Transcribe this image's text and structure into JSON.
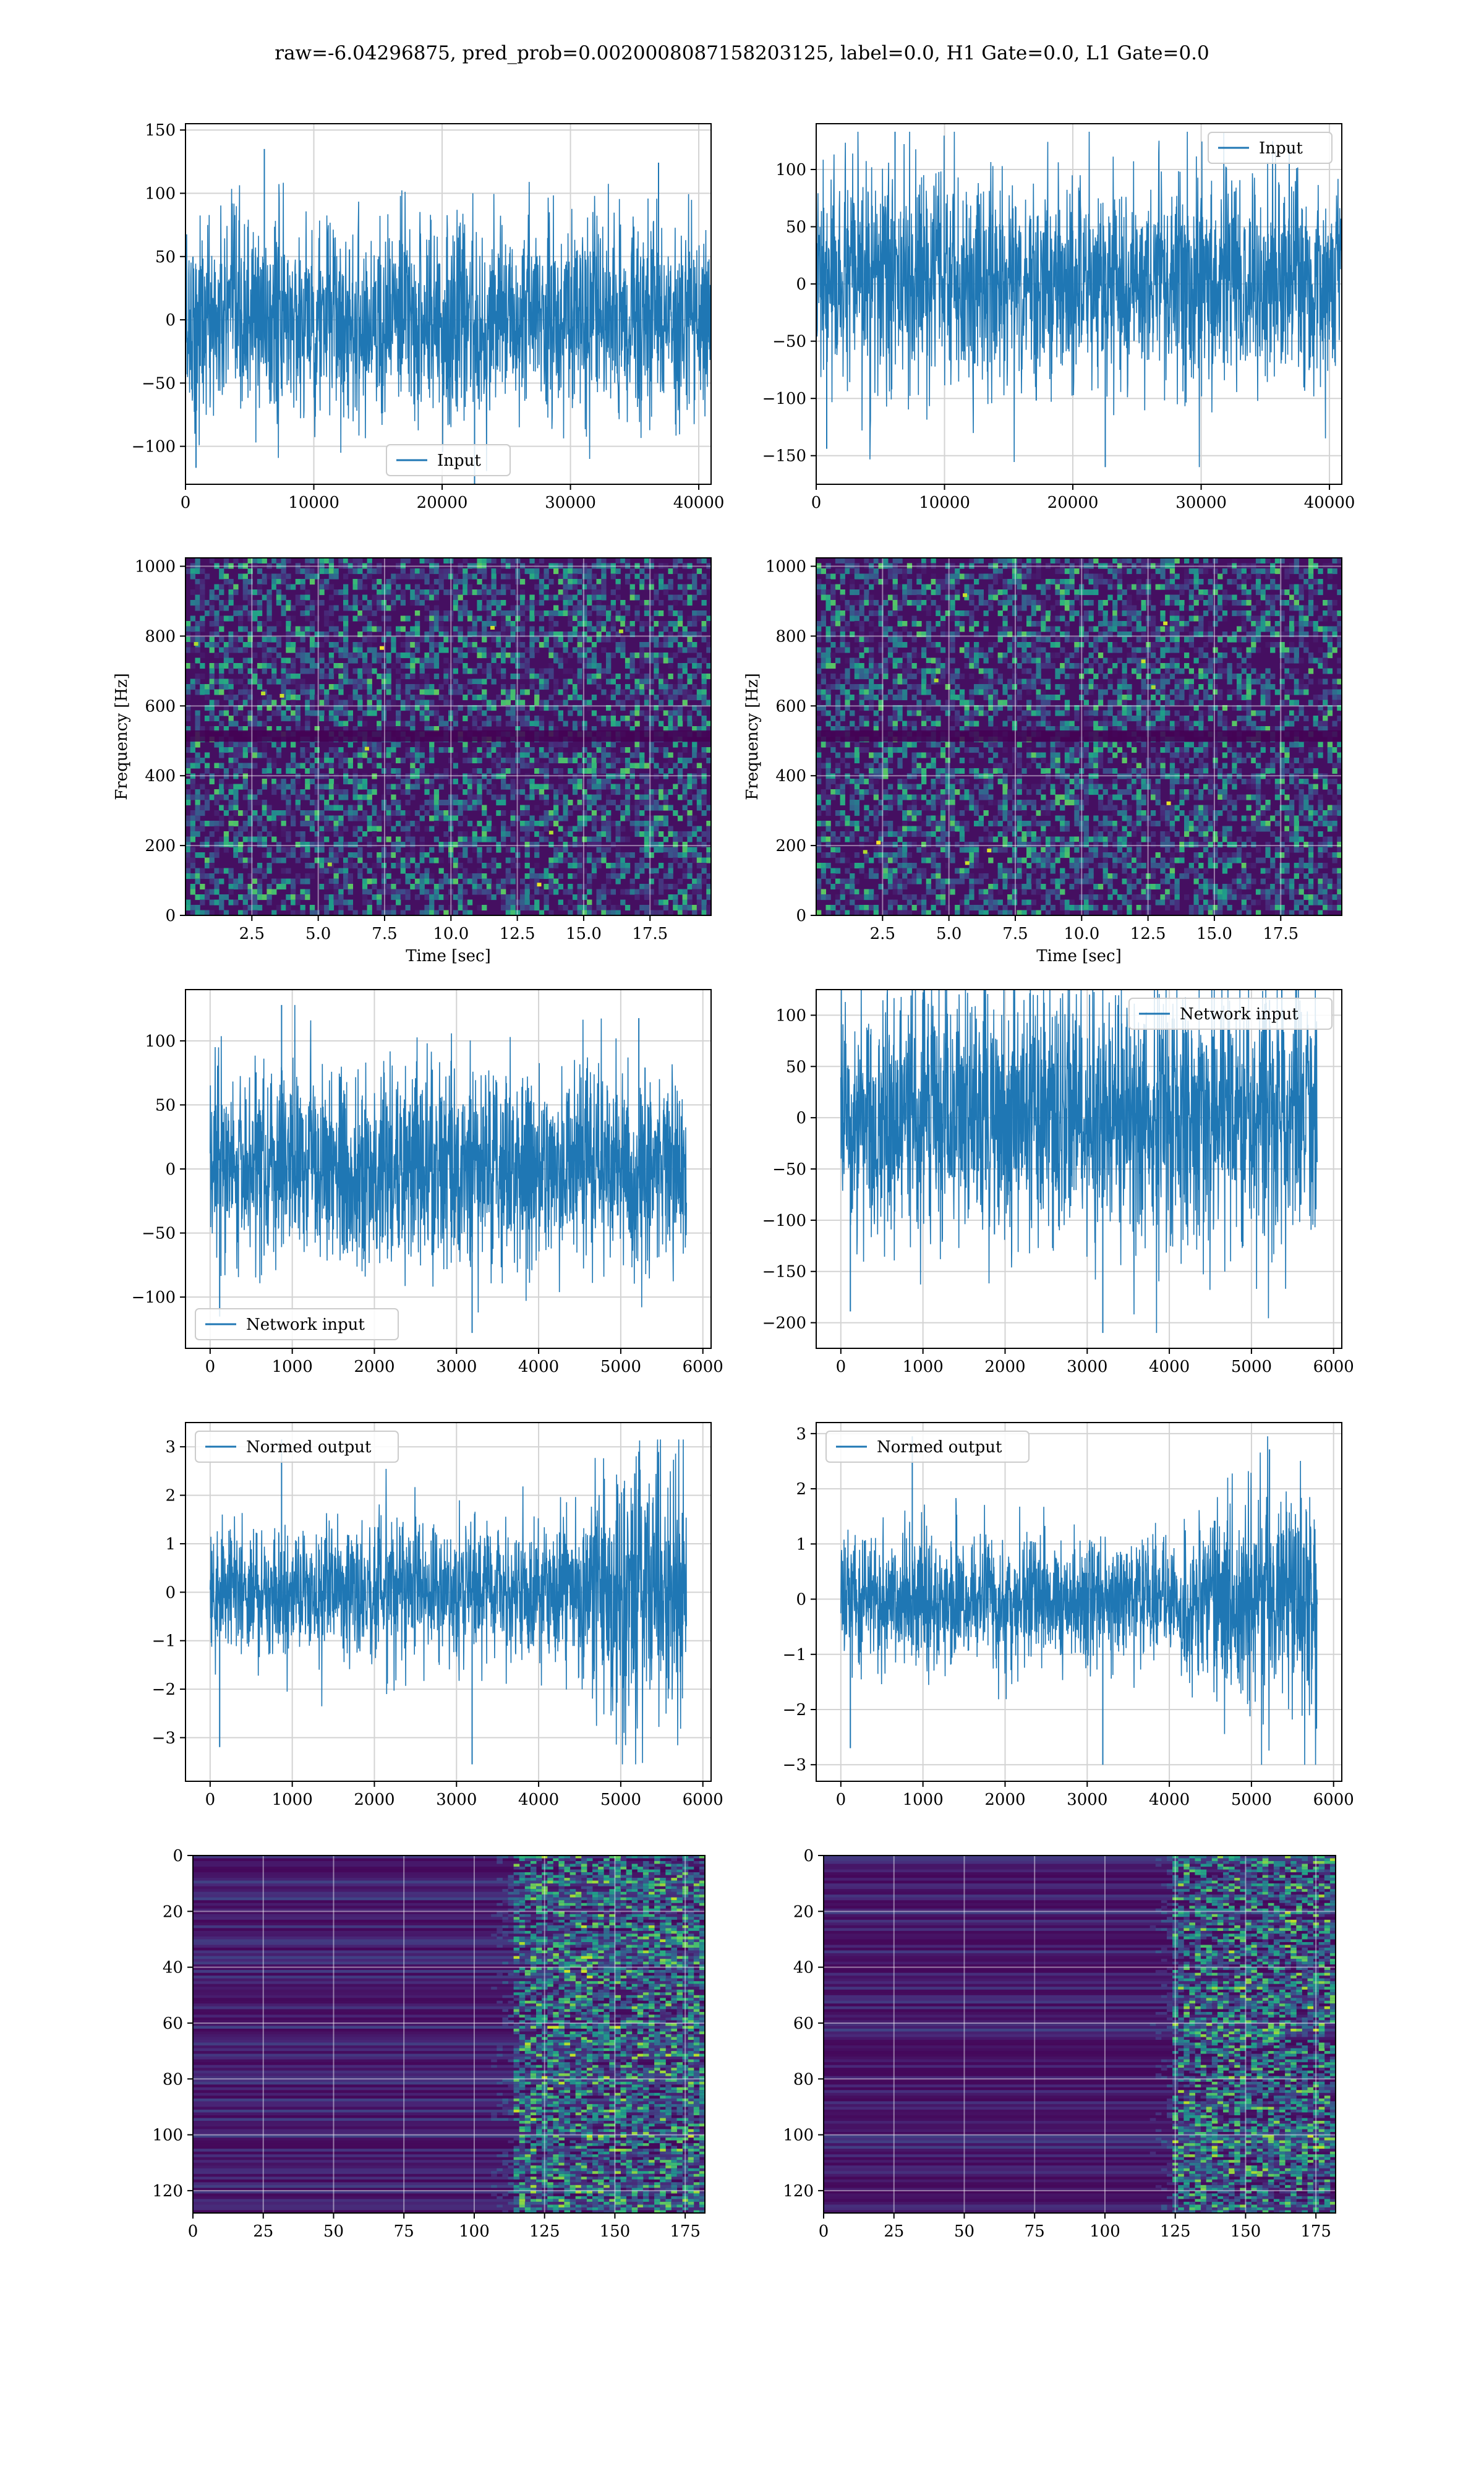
{
  "figure": {
    "title": "raw=-6.04296875, pred_prob=0.0020008087158203125, label=0.0, H1 Gate=0.0, L1 Gate=0.0"
  },
  "colors": {
    "series": "#1f77b4",
    "grid": "#d3d3d3",
    "axes": "#000000"
  },
  "chart_data": [
    {
      "type": "line",
      "panel": "top-left",
      "series": [
        {
          "name": "Input",
          "x_range": [
            0,
            40960
          ],
          "y_envelope": [
            -130,
            135
          ]
        }
      ],
      "xlim": [
        0,
        40960
      ],
      "ylim": [
        -130,
        155
      ],
      "xticks": [
        0,
        10000,
        20000,
        30000,
        40000
      ],
      "xtick_labels": [
        "0",
        "10000",
        "20000",
        "30000",
        "40000"
      ],
      "yticks": [
        -100,
        -50,
        0,
        50,
        100,
        150
      ],
      "ytick_labels": [
        "−100",
        "−50",
        "0",
        "50",
        "100",
        "150"
      ],
      "legend": "lower-center",
      "grid": true
    },
    {
      "type": "line",
      "panel": "top-right",
      "series": [
        {
          "name": "Input",
          "x_range": [
            0,
            40960
          ],
          "y_envelope": [
            -160,
            133
          ]
        }
      ],
      "xlim": [
        0,
        40960
      ],
      "ylim": [
        -175,
        140
      ],
      "xticks": [
        0,
        10000,
        20000,
        30000,
        40000
      ],
      "xtick_labels": [
        "0",
        "10000",
        "20000",
        "30000",
        "40000"
      ],
      "yticks": [
        -150,
        -100,
        -50,
        0,
        50,
        100
      ],
      "ytick_labels": [
        "−150",
        "−100",
        "−50",
        "0",
        "50",
        "100"
      ],
      "legend": "upper-right",
      "grid": true
    },
    {
      "type": "heatmap",
      "panel": "spectrogram-left",
      "xlabel": "Time [sec]",
      "ylabel": "Frequency [Hz]",
      "xlim": [
        0,
        19.8
      ],
      "ylim": [
        0,
        1024
      ],
      "xticks": [
        2.5,
        5.0,
        7.5,
        10.0,
        12.5,
        15.0,
        17.5
      ],
      "xtick_labels": [
        "2.5",
        "5.0",
        "7.5",
        "10.0",
        "12.5",
        "15.0",
        "17.5"
      ],
      "yticks": [
        0,
        200,
        400,
        600,
        800,
        1000
      ],
      "ytick_labels": [
        "0",
        "200",
        "400",
        "600",
        "800",
        "1000"
      ],
      "colormap": "viridis",
      "grid": true
    },
    {
      "type": "heatmap",
      "panel": "spectrogram-right",
      "xlabel": "Time [sec]",
      "ylabel": "Frequency [Hz]",
      "xlim": [
        0,
        19.8
      ],
      "ylim": [
        0,
        1024
      ],
      "xticks": [
        2.5,
        5.0,
        7.5,
        10.0,
        12.5,
        15.0,
        17.5
      ],
      "xtick_labels": [
        "2.5",
        "5.0",
        "7.5",
        "10.0",
        "12.5",
        "15.0",
        "17.5"
      ],
      "yticks": [
        0,
        200,
        400,
        600,
        800,
        1000
      ],
      "ytick_labels": [
        "0",
        "200",
        "400",
        "600",
        "800",
        "1000"
      ],
      "colormap": "viridis",
      "grid": true
    },
    {
      "type": "line",
      "panel": "network-input-left",
      "series": [
        {
          "name": "Network input",
          "x_range": [
            0,
            5800
          ],
          "y_envelope": [
            -128,
            128
          ]
        }
      ],
      "xlim": [
        -300,
        6100
      ],
      "ylim": [
        -140,
        140
      ],
      "xticks": [
        0,
        1000,
        2000,
        3000,
        4000,
        5000,
        6000
      ],
      "xtick_labels": [
        "0",
        "1000",
        "2000",
        "3000",
        "4000",
        "5000",
        "6000"
      ],
      "yticks": [
        -100,
        -50,
        0,
        50,
        100
      ],
      "ytick_labels": [
        "−100",
        "−50",
        "0",
        "50",
        "100"
      ],
      "legend": "lower-left",
      "grid": true
    },
    {
      "type": "line",
      "panel": "network-input-right",
      "series": [
        {
          "name": "Network input",
          "x_range": [
            0,
            5800
          ],
          "y_envelope": [
            -210,
            125
          ]
        }
      ],
      "xlim": [
        -300,
        6100
      ],
      "ylim": [
        -225,
        125
      ],
      "xticks": [
        0,
        1000,
        2000,
        3000,
        4000,
        5000,
        6000
      ],
      "xtick_labels": [
        "0",
        "1000",
        "2000",
        "3000",
        "4000",
        "5000",
        "6000"
      ],
      "yticks": [
        -200,
        -150,
        -100,
        -50,
        0,
        50,
        100
      ],
      "ytick_labels": [
        "−200",
        "−150",
        "−100",
        "−50",
        "0",
        "50",
        "100"
      ],
      "legend": "upper-right",
      "grid": true
    },
    {
      "type": "line",
      "panel": "normed-output-left",
      "series": [
        {
          "name": "Normed output",
          "x_range": [
            0,
            5800
          ],
          "y_envelope": [
            -3.55,
            3.15
          ]
        }
      ],
      "xlim": [
        -300,
        6100
      ],
      "ylim": [
        -3.9,
        3.5
      ],
      "xticks": [
        0,
        1000,
        2000,
        3000,
        4000,
        5000,
        6000
      ],
      "xtick_labels": [
        "0",
        "1000",
        "2000",
        "3000",
        "4000",
        "5000",
        "6000"
      ],
      "yticks": [
        -3,
        -2,
        -1,
        0,
        1,
        2,
        3
      ],
      "ytick_labels": [
        "−3",
        "−2",
        "−1",
        "0",
        "1",
        "2",
        "3"
      ],
      "legend": "upper-left",
      "grid": true
    },
    {
      "type": "line",
      "panel": "normed-output-right",
      "series": [
        {
          "name": "Normed output",
          "x_range": [
            0,
            5800
          ],
          "y_envelope": [
            -3.0,
            2.95
          ]
        }
      ],
      "xlim": [
        -300,
        6100
      ],
      "ylim": [
        -3.3,
        3.2
      ],
      "xticks": [
        0,
        1000,
        2000,
        3000,
        4000,
        5000,
        6000
      ],
      "xtick_labels": [
        "0",
        "1000",
        "2000",
        "3000",
        "4000",
        "5000",
        "6000"
      ],
      "yticks": [
        -3,
        -2,
        -1,
        0,
        1,
        2,
        3
      ],
      "ytick_labels": [
        "−3",
        "−2",
        "−1",
        "0",
        "1",
        "2",
        "3"
      ],
      "legend": "upper-left",
      "grid": true
    },
    {
      "type": "heatmap",
      "panel": "feature-map-left",
      "xlim": [
        0,
        182
      ],
      "ylim": [
        128,
        0
      ],
      "rows": 128,
      "cols": 182,
      "xticks": [
        0,
        25,
        50,
        75,
        100,
        125,
        150,
        175
      ],
      "xtick_labels": [
        "0",
        "25",
        "50",
        "75",
        "100",
        "125",
        "150",
        "175"
      ],
      "yticks": [
        0,
        20,
        40,
        60,
        80,
        100,
        120
      ],
      "ytick_labels": [
        "0",
        "20",
        "40",
        "60",
        "80",
        "100",
        "120"
      ],
      "colormap": "viridis",
      "grid": true
    },
    {
      "type": "heatmap",
      "panel": "feature-map-right",
      "xlim": [
        0,
        182
      ],
      "ylim": [
        128,
        0
      ],
      "rows": 128,
      "cols": 182,
      "xticks": [
        0,
        25,
        50,
        75,
        100,
        125,
        150,
        175
      ],
      "xtick_labels": [
        "0",
        "25",
        "50",
        "75",
        "100",
        "125",
        "150",
        "175"
      ],
      "yticks": [
        0,
        20,
        40,
        60,
        80,
        100,
        120
      ],
      "ytick_labels": [
        "0",
        "20",
        "40",
        "60",
        "80",
        "100",
        "120"
      ],
      "colormap": "viridis",
      "grid": true
    }
  ]
}
